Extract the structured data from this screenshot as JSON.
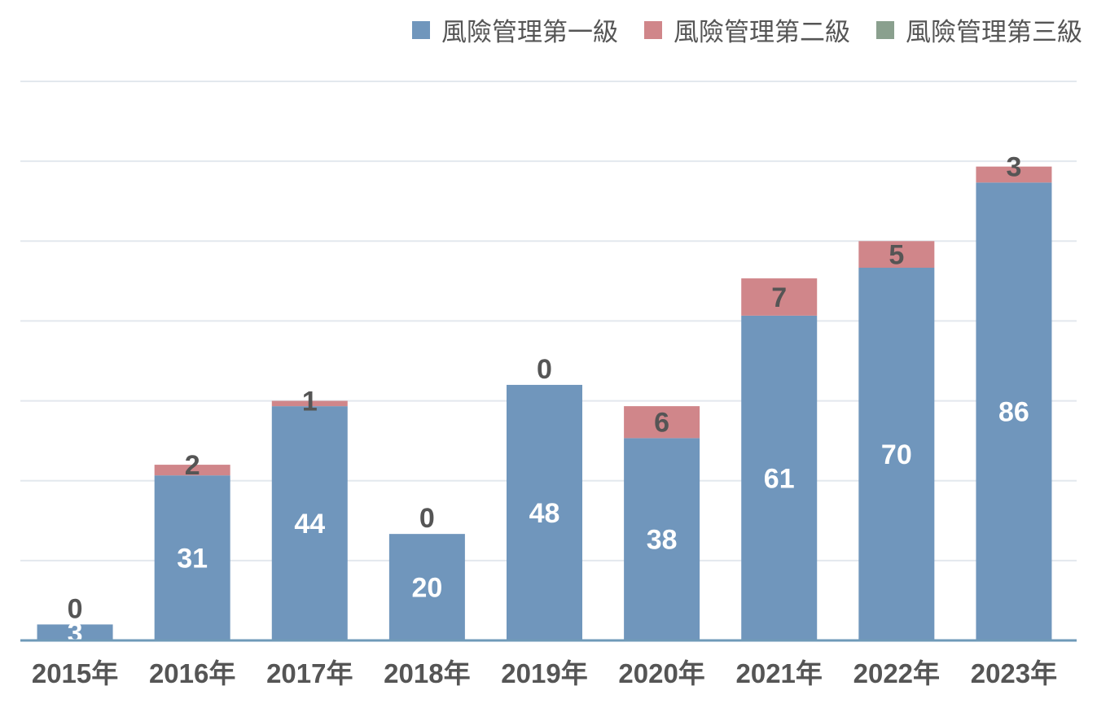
{
  "chart_data": {
    "type": "bar",
    "stacked": true,
    "categories": [
      "2015年",
      "2016年",
      "2017年",
      "2018年",
      "2019年",
      "2020年",
      "2021年",
      "2022年",
      "2023年"
    ],
    "series": [
      {
        "name": "風險管理第一級",
        "color": "#7096bc",
        "values": [
          3,
          31,
          44,
          20,
          48,
          38,
          61,
          70,
          86
        ]
      },
      {
        "name": "風險管理第二級",
        "color": "#d0868a",
        "values": [
          0,
          2,
          1,
          0,
          0,
          6,
          7,
          5,
          3
        ]
      },
      {
        "name": "風險管理第三級",
        "color": "#8aa08e",
        "values": [
          0,
          0,
          0,
          0,
          0,
          0,
          0,
          0,
          0
        ]
      }
    ],
    "data_labels": {
      "series_1": [
        "3",
        "31",
        "44",
        "20",
        "48",
        "38",
        "61",
        "70",
        "86"
      ],
      "series_2": [
        "0",
        "2",
        "1",
        "0",
        "0",
        "6",
        "7",
        "5",
        "3"
      ]
    },
    "ylim": [
      0,
      105
    ],
    "grid": true,
    "y_axis_labels_shown": false,
    "legend_position": "top-right",
    "colors": {
      "gridline": "#e3e8ee",
      "baseline": "#6f9ab8",
      "label_light": "#ffffff",
      "label_dark": "#555555"
    }
  }
}
